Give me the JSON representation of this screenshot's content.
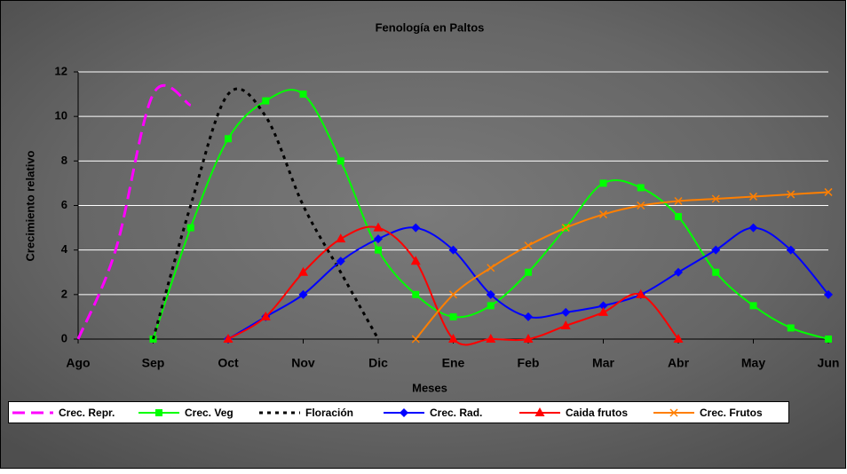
{
  "chart_data": {
    "type": "line",
    "title": "Fenología en Paltos",
    "x_label": "Meses",
    "y_label": "Crecimiento relativo",
    "xlim": [
      0,
      10
    ],
    "ylim": [
      0,
      12
    ],
    "xticks": [
      {
        "value": 0,
        "label": "Ago"
      },
      {
        "value": 1,
        "label": "Sep"
      },
      {
        "value": 2,
        "label": "Oct"
      },
      {
        "value": 3,
        "label": "Nov"
      },
      {
        "value": 4,
        "label": "Dic"
      },
      {
        "value": 5,
        "label": "Ene"
      },
      {
        "value": 6,
        "label": "Feb"
      },
      {
        "value": 7,
        "label": "Mar"
      },
      {
        "value": 8,
        "label": "Abr"
      },
      {
        "value": 9,
        "label": "May"
      },
      {
        "value": 10,
        "label": "Jun"
      }
    ],
    "yticks": [
      0,
      2,
      4,
      6,
      8,
      10,
      12
    ],
    "grid": true,
    "series": [
      {
        "name": "Crec. Repr.",
        "color": "#ff00ff",
        "dash": "14,7",
        "marker": "none",
        "x": [
          0,
          0.5,
          1,
          1.5
        ],
        "values": [
          0,
          4,
          11,
          10.5
        ]
      },
      {
        "name": "Crec. Veg",
        "color": "#00ff00",
        "dash": "none",
        "marker": "square",
        "x": [
          1,
          1.5,
          2,
          2.5,
          3,
          3.5,
          4,
          4.5,
          5,
          5.5,
          6,
          6.5,
          7,
          7.5,
          8,
          8.5,
          9,
          9.5,
          10
        ],
        "values": [
          0,
          5,
          9,
          10.7,
          11,
          8,
          4,
          2,
          1,
          1.5,
          3,
          5,
          7,
          6.8,
          5.5,
          3,
          1.5,
          0.5,
          0
        ]
      },
      {
        "name": "Floración",
        "color": "#000000",
        "dash": "4,5",
        "marker": "none",
        "x": [
          1,
          1.5,
          2,
          2.5,
          3,
          3.5,
          4
        ],
        "values": [
          0,
          6,
          11,
          10,
          6,
          3,
          0
        ]
      },
      {
        "name": "Crec. Rad.",
        "color": "#0000ff",
        "dash": "none",
        "marker": "diamond",
        "x": [
          2,
          2.5,
          3,
          3.5,
          4,
          4.5,
          5,
          5.5,
          6,
          6.5,
          7,
          7.5,
          8,
          8.5,
          9,
          9.5,
          10
        ],
        "values": [
          0,
          1,
          2,
          3.5,
          4.5,
          5,
          4,
          2,
          1,
          1.2,
          1.5,
          2,
          3,
          4,
          5,
          4,
          2
        ]
      },
      {
        "name": "Caida frutos",
        "color": "#ff0000",
        "dash": "none",
        "marker": "triangle",
        "x": [
          2,
          2.5,
          3,
          3.5,
          4,
          4.5,
          5,
          5.5,
          6,
          6.5,
          7,
          7.5,
          8
        ],
        "values": [
          0,
          1,
          3,
          4.5,
          5,
          3.5,
          0,
          0,
          0,
          0.6,
          1.2,
          2,
          0
        ]
      },
      {
        "name": "Crec. Frutos",
        "color": "#ff7f00",
        "dash": "none",
        "marker": "cross",
        "x": [
          4.5,
          5,
          5.5,
          6,
          6.5,
          7,
          7.5,
          8,
          8.5,
          9,
          9.5,
          10
        ],
        "values": [
          0,
          2,
          3.2,
          4.2,
          5,
          5.6,
          6,
          6.2,
          6.3,
          6.4,
          6.5,
          6.6
        ]
      }
    ]
  }
}
